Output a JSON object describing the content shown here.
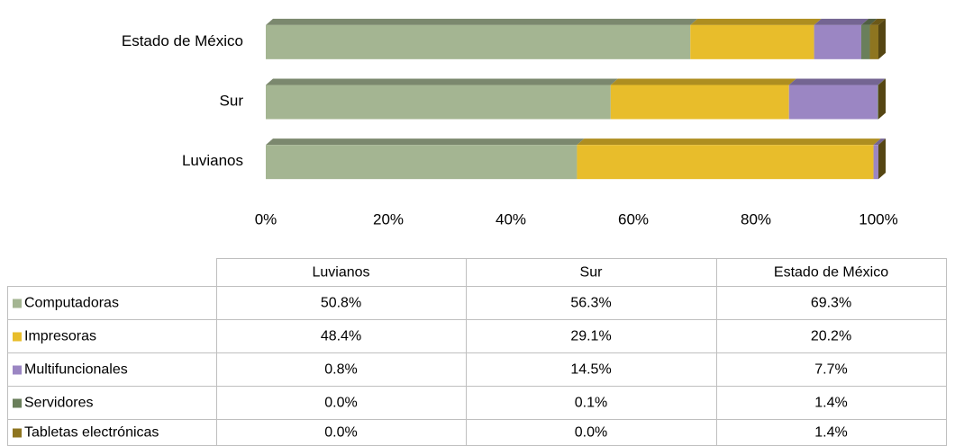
{
  "chart_data": {
    "type": "bar",
    "orientation": "horizontal",
    "stacked": true,
    "categories": [
      "Luvianos",
      "Sur",
      "Estado de México"
    ],
    "series": [
      {
        "name": "Computadoras",
        "color": "#a4b592",
        "values": [
          50.8,
          56.3,
          69.3
        ],
        "value_labels": [
          "50.8%",
          "56.3%",
          "69.3%"
        ]
      },
      {
        "name": "Impresoras",
        "color": "#e8bd2b",
        "values": [
          48.4,
          29.1,
          20.2
        ],
        "value_labels": [
          "48.4%",
          "29.1%",
          "20.2%"
        ]
      },
      {
        "name": "Multifuncionales",
        "color": "#9b86c3",
        "values": [
          0.8,
          14.5,
          7.7
        ],
        "value_labels": [
          "0.8%",
          "14.5%",
          "7.7%"
        ]
      },
      {
        "name": "Servidores",
        "color": "#6a7f5b",
        "values": [
          0.0,
          0.1,
          1.4
        ],
        "value_labels": [
          "0.0%",
          "0.1%",
          "1.4%"
        ]
      },
      {
        "name": "Tabletas electrónicas",
        "color": "#8e7520",
        "values": [
          0.0,
          0.0,
          1.4
        ],
        "value_labels": [
          "0.0%",
          "0.0%",
          "1.4%"
        ]
      }
    ],
    "xlim": [
      0,
      100
    ],
    "xticks": [
      {
        "value": 0,
        "label": "0%"
      },
      {
        "value": 20,
        "label": "20%"
      },
      {
        "value": 40,
        "label": "40%"
      },
      {
        "value": 60,
        "label": "60%"
      },
      {
        "value": 80,
        "label": "80%"
      },
      {
        "value": 100,
        "label": "100%"
      }
    ],
    "grid": false
  }
}
